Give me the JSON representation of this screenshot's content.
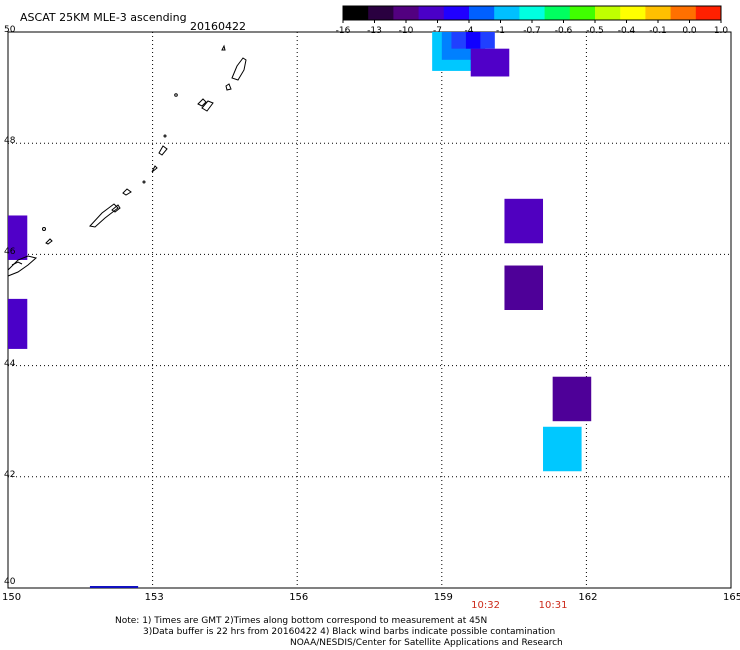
{
  "header": {
    "title": "ASCAT 25KM MLE-3 ascending",
    "date": "20160422"
  },
  "colorbar": {
    "labels": [
      "-16",
      "-13",
      "-10",
      "-7",
      "-4",
      "-1",
      "-0.7",
      "-0.6",
      "-0.5",
      "-0.4",
      "-0.1",
      "0.0",
      "1.0"
    ],
    "colors": [
      "#000000",
      "#2a0040",
      "#520080",
      "#4a00c8",
      "#2000ff",
      "#0060ff",
      "#00c0ff",
      "#00ffe0",
      "#00ff60",
      "#40ff00",
      "#c0ff00",
      "#ffff00",
      "#ffc000",
      "#ff7000",
      "#ff2000"
    ]
  },
  "map": {
    "lon_labels": [
      "150",
      "153",
      "156",
      "159",
      "162",
      "165"
    ],
    "lat_labels": [
      "50",
      "48",
      "46",
      "44",
      "42",
      "40"
    ],
    "lon_range": [
      150,
      165
    ],
    "lat_range": [
      40,
      50
    ],
    "time_labels": [
      {
        "lon": 159.9,
        "text": "10:32"
      },
      {
        "lon": 161.3,
        "text": "10:31"
      }
    ],
    "cells": [
      {
        "lon": 158.8,
        "lat": 50.0,
        "w": 0.9,
        "h": 0.7,
        "color": "#00c8ff"
      },
      {
        "lon": 159.0,
        "lat": 50.0,
        "w": 0.9,
        "h": 0.5,
        "color": "#0080ff"
      },
      {
        "lon": 159.2,
        "lat": 50.0,
        "w": 0.9,
        "h": 0.3,
        "color": "#2040ff"
      },
      {
        "lon": 159.5,
        "lat": 50.0,
        "w": 0.3,
        "h": 0.3,
        "color": "#1000ff"
      },
      {
        "lon": 159.6,
        "lat": 49.7,
        "w": 0.8,
        "h": 0.5,
        "color": "#5000c8"
      },
      {
        "lon": 160.3,
        "lat": 47.0,
        "w": 0.8,
        "h": 0.8,
        "color": "#5000c0"
      },
      {
        "lon": 160.3,
        "lat": 45.8,
        "w": 0.8,
        "h": 0.8,
        "color": "#4e0098"
      },
      {
        "lon": 150.0,
        "lat": 46.7,
        "w": 0.4,
        "h": 0.8,
        "color": "#5000c8"
      },
      {
        "lon": 150.0,
        "lat": 45.2,
        "w": 0.4,
        "h": 0.9,
        "color": "#4a00c8"
      },
      {
        "lon": 161.3,
        "lat": 43.8,
        "w": 0.8,
        "h": 0.8,
        "color": "#4e0098"
      },
      {
        "lon": 161.1,
        "lat": 42.9,
        "w": 0.8,
        "h": 0.8,
        "color": "#00c8ff"
      }
    ],
    "bottom_strip": {
      "lon1": 151.7,
      "lon2": 152.7,
      "color": "#1010c0"
    }
  },
  "notes": {
    "line1": "Note: 1) Times are GMT 2)Times along bottom correspond to measurement at 45N",
    "line2": "3)Data buffer is 22 hrs from 20160422 4) Black wind barbs indicate possible contamination",
    "line3": "NOAA/NESDIS/Center for Satellite Applications and Research"
  }
}
